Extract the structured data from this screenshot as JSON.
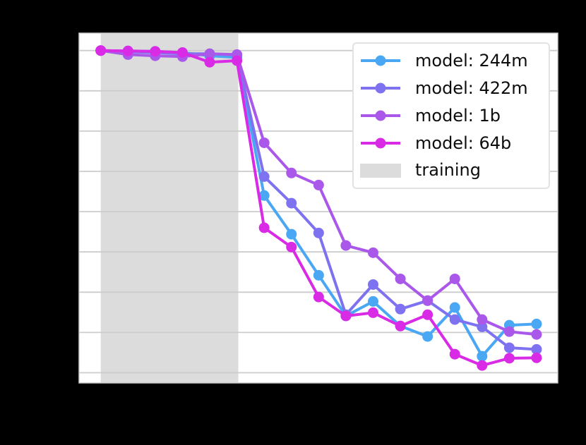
{
  "figure": {
    "background_color": "#000000",
    "plot_background_color": "#ffffff",
    "grid_color": "#cccccc",
    "spine_color": "#cfcfcf"
  },
  "legend": {
    "items": [
      {
        "label": "model: 244m",
        "color": "#4aa7f3",
        "sample": "line-marker"
      },
      {
        "label": "model: 422m",
        "color": "#7f72f0",
        "sample": "line-marker"
      },
      {
        "label": "model: 1b",
        "color": "#aa58ea",
        "sample": "line-marker"
      },
      {
        "label": "model: 64b",
        "color": "#d92be5",
        "sample": "line-marker"
      },
      {
        "label": "training",
        "color": "#dcdcdc",
        "sample": "patch"
      }
    ]
  },
  "chart_data": {
    "type": "line",
    "x": [
      0,
      1,
      2,
      3,
      4,
      5,
      6,
      7,
      8,
      9,
      10,
      11,
      12,
      13,
      14,
      15,
      16
    ],
    "series": [
      {
        "name": "model: 244m",
        "color": "#4aa7f3",
        "values": [
          1.0,
          0.999,
          0.998,
          0.995,
          0.987,
          0.983,
          0.64,
          0.544,
          0.442,
          0.341,
          0.377,
          0.316,
          0.29,
          0.362,
          0.241,
          0.318,
          0.321
        ]
      },
      {
        "name": "model: 422m",
        "color": "#7f72f0",
        "values": [
          1.0,
          0.997,
          0.995,
          0.992,
          0.992,
          0.989,
          0.687,
          0.621,
          0.547,
          0.344,
          0.419,
          0.358,
          0.379,
          0.332,
          0.314,
          0.262,
          0.258
        ]
      },
      {
        "name": "model: 1b",
        "color": "#aa58ea",
        "values": [
          1.0,
          0.99,
          0.987,
          0.985,
          0.992,
          0.99,
          0.771,
          0.696,
          0.666,
          0.516,
          0.498,
          0.433,
          0.379,
          0.433,
          0.332,
          0.302,
          0.295
        ]
      },
      {
        "name": "model: 64b",
        "color": "#d92be5",
        "values": [
          1.0,
          0.999,
          0.998,
          0.995,
          0.971,
          0.975,
          0.56,
          0.512,
          0.388,
          0.341,
          0.349,
          0.316,
          0.344,
          0.246,
          0.218,
          0.236,
          0.237
        ]
      }
    ],
    "training_region": {
      "label": "training",
      "color": "#dcdcdc",
      "x_start": 0,
      "x_end": 5.05
    },
    "grid": "horizontal",
    "gridline_values": [
      1.0,
      0.9,
      0.8,
      0.7,
      0.6,
      0.5,
      0.4,
      0.3,
      0.2
    ],
    "legend_position": "upper right",
    "note": "axis tick labels, axis titles and figure title are not visible (black text on black background)"
  }
}
